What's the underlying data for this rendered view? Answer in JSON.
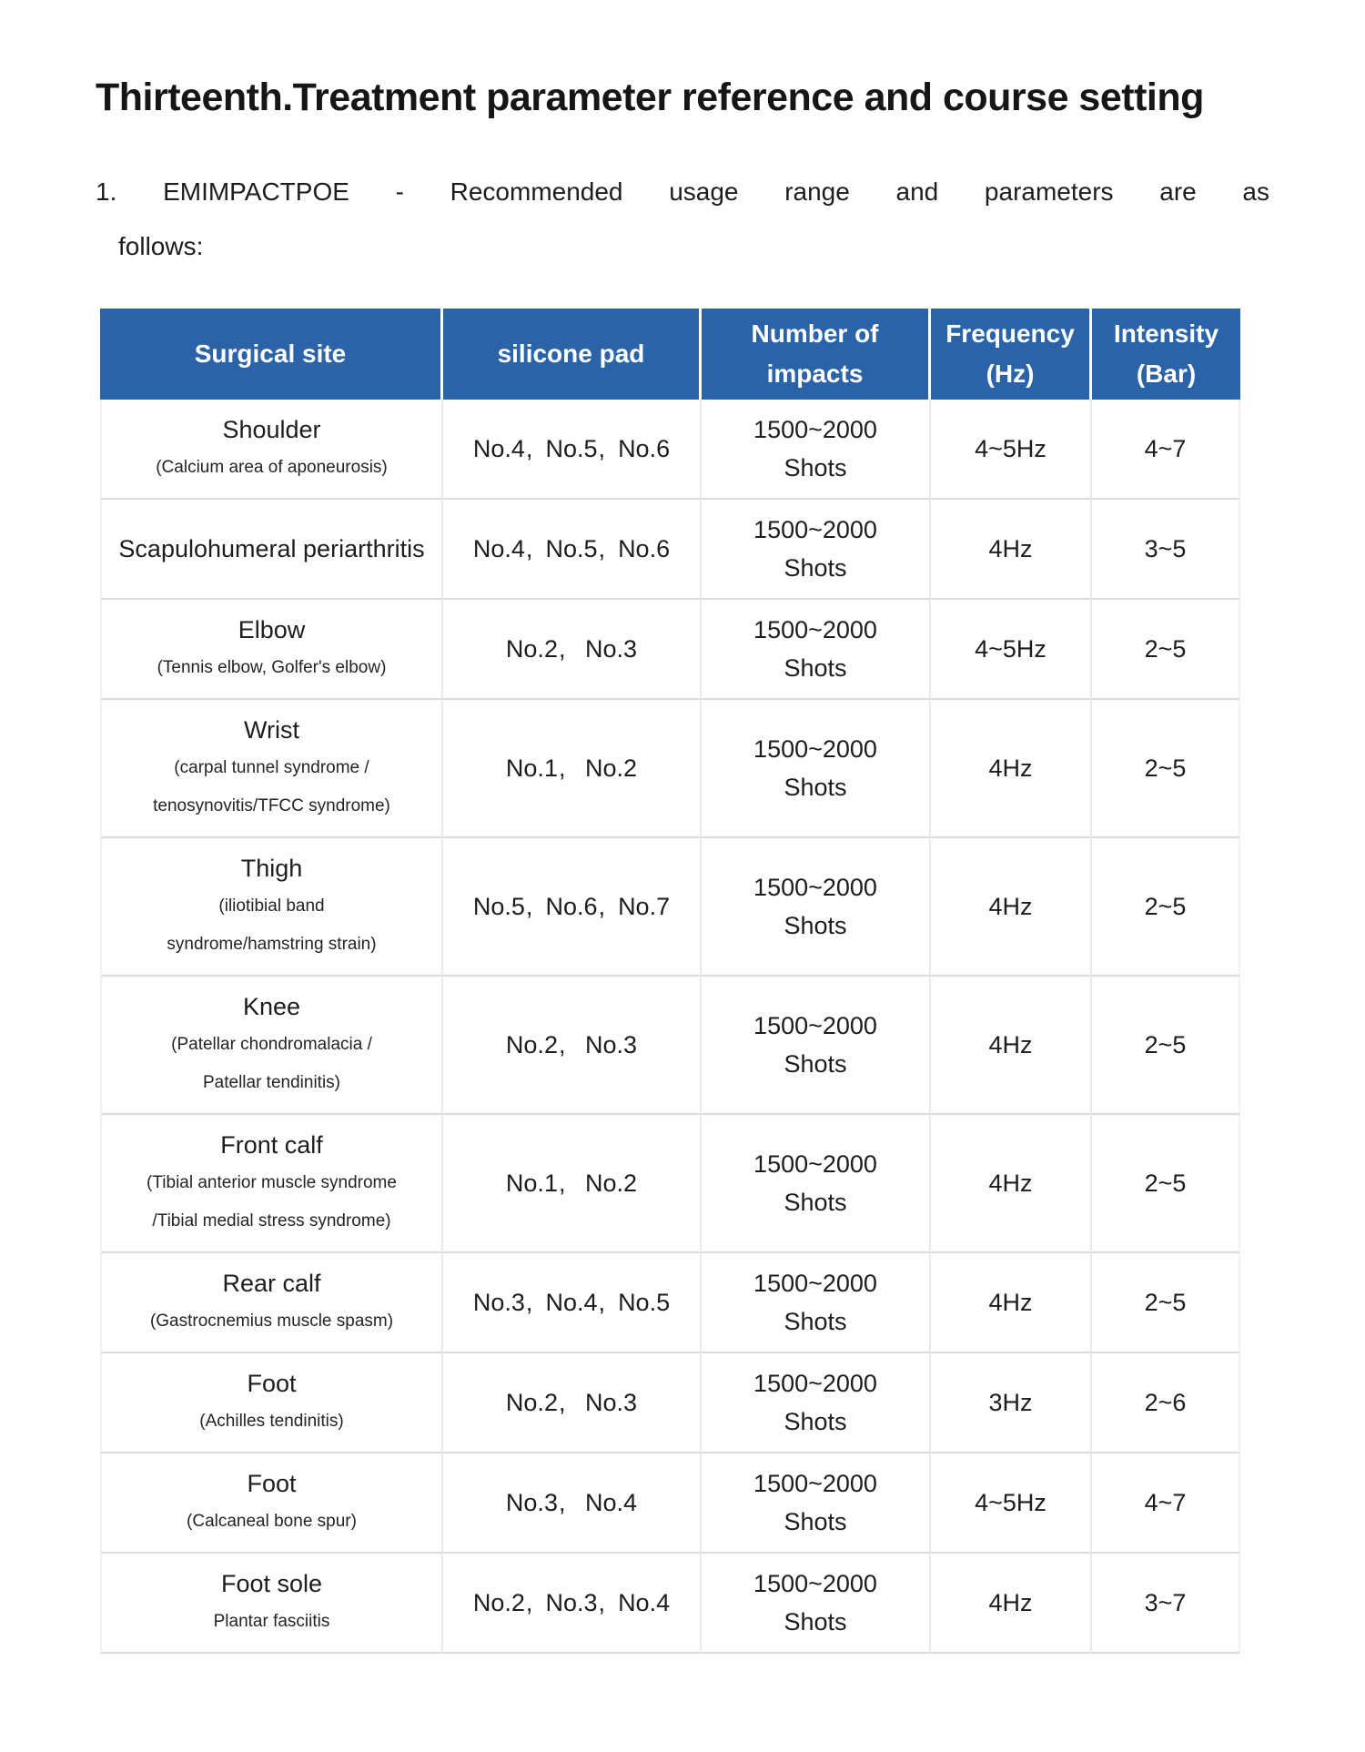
{
  "title": "Thirteenth.Treatment parameter reference and course setting",
  "intro": {
    "number": "1.",
    "line1": "EMIMPACTPOE - Recommended usage range and parameters are as",
    "line2": "follows:"
  },
  "table": {
    "columns": [
      {
        "label": "Surgical site"
      },
      {
        "label": "silicone pad"
      },
      {
        "label": "Number of impacts"
      },
      {
        "label": "Frequency (Hz)"
      },
      {
        "label": "Intensity (Bar)"
      }
    ],
    "list_separator": "、",
    "rows": [
      {
        "site": "Shoulder",
        "site_notes": [
          "(Calcium area of aponeurosis)"
        ],
        "pads": "No.4、No.5、No.6",
        "impacts": "1500~2000",
        "impacts_unit": "Shots",
        "frequency": "4~5Hz",
        "intensity": "4~7"
      },
      {
        "site": "Scapulohumeral periarthritis",
        "site_notes": [],
        "pads": "No.4、No.5、No.6",
        "impacts": "1500~2000",
        "impacts_unit": "Shots",
        "frequency": "4Hz",
        "intensity": "3~5"
      },
      {
        "site": "Elbow",
        "site_notes": [
          "(Tennis elbow, Golfer's elbow)"
        ],
        "pads": "No.2、 No.3",
        "impacts": "1500~2000",
        "impacts_unit": "Shots",
        "frequency": "4~5Hz",
        "intensity": "2~5"
      },
      {
        "site": "Wrist",
        "site_notes": [
          "(carpal tunnel syndrome /",
          "tenosynovitis/TFCC syndrome)"
        ],
        "pads": "No.1、 No.2",
        "impacts": "1500~2000",
        "impacts_unit": "Shots",
        "frequency": "4Hz",
        "intensity": "2~5"
      },
      {
        "site": "Thigh",
        "site_notes": [
          "(iliotibial band",
          "syndrome/hamstring strain)"
        ],
        "pads": "No.5、No.6、No.7",
        "impacts": "1500~2000",
        "impacts_unit": "Shots",
        "frequency": "4Hz",
        "intensity": "2~5"
      },
      {
        "site": "Knee",
        "site_notes": [
          "(Patellar chondromalacia /",
          "Patellar tendinitis)"
        ],
        "pads": "No.2、 No.3",
        "impacts": "1500~2000",
        "impacts_unit": "Shots",
        "frequency": "4Hz",
        "intensity": "2~5"
      },
      {
        "site": "Front calf",
        "site_notes": [
          "(Tibial anterior muscle syndrome",
          "/Tibial medial stress syndrome)"
        ],
        "pads": "No.1、 No.2",
        "impacts": "1500~2000",
        "impacts_unit": "Shots",
        "frequency": "4Hz",
        "intensity": "2~5"
      },
      {
        "site": "Rear calf",
        "site_notes": [
          "(Gastrocnemius muscle spasm)"
        ],
        "pads": "No.3、No.4、No.5",
        "impacts": "1500~2000",
        "impacts_unit": "Shots",
        "frequency": "4Hz",
        "intensity": "2~5"
      },
      {
        "site": "Foot",
        "site_notes": [
          "(Achilles tendinitis)"
        ],
        "pads": "No.2、 No.3",
        "impacts": "1500~2000",
        "impacts_unit": "Shots",
        "frequency": "3Hz",
        "intensity": "2~6"
      },
      {
        "site": "Foot",
        "site_notes": [
          "(Calcaneal bone spur)"
        ],
        "pads": "No.3、 No.4",
        "impacts": "1500~2000",
        "impacts_unit": "Shots",
        "frequency": "4~5Hz",
        "intensity": "4~7"
      },
      {
        "site": "Foot sole",
        "site_notes": [
          "Plantar fasciitis"
        ],
        "pads": "No.2、No.3、No.4",
        "impacts": "1500~2000",
        "impacts_unit": "Shots",
        "frequency": "4Hz",
        "intensity": "3~7"
      }
    ]
  },
  "colors": {
    "header_bg": "#2b63a8",
    "header_text": "#ffffff",
    "body_text": "#1d1d1d",
    "row_divider": "#dcdcdc",
    "column_divider": "#ebebeb"
  }
}
